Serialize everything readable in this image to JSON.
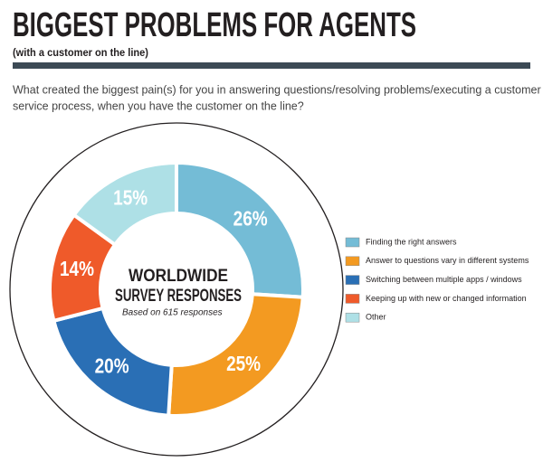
{
  "chart_data": {
    "type": "donut",
    "title": "BIGGEST PROBLEMS FOR AGENTS",
    "subtitle": "(with a customer on the line)",
    "question": [
      "What created the biggest pain(s) for you in answering questions/resolving problems/executing a customer",
      "service process, when you have the customer on the line?"
    ],
    "center_title": [
      "WORLDWIDE",
      "SURVEY RESPONSES"
    ],
    "center_subtitle": "Based on 615 responses",
    "categories": [
      "Finding the right answers",
      "Answer to questions vary in different systems",
      "Switching between multiple apps / windows",
      "Keeping up with new or changed information",
      "Other"
    ],
    "values": [
      26,
      25,
      20,
      14,
      15
    ],
    "value_labels": [
      "26%",
      "25%",
      "20%",
      "14%",
      "15%"
    ],
    "colors": [
      "#74bcd6",
      "#f39a21",
      "#2a6fb5",
      "#ef5a2a",
      "#aee0e6"
    ],
    "legend": "right"
  }
}
